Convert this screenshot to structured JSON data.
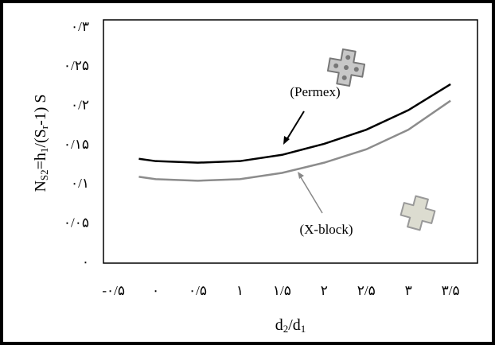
{
  "chart_data": {
    "type": "line",
    "y_label": [
      {
        "text": "N"
      },
      {
        "text": "S2",
        "sub": true
      },
      {
        "text": "=h"
      },
      {
        "text": "1",
        "sub": true
      },
      {
        "text": "/(S"
      },
      {
        "text": "r",
        "sub": true
      },
      {
        "text": "-1) S"
      }
    ],
    "x_label": [
      {
        "text": "d"
      },
      {
        "text": "2",
        "sub": true
      },
      {
        "text": "/d"
      },
      {
        "text": "1",
        "sub": true
      }
    ],
    "xlim": [
      -0.62,
      3.82
    ],
    "ylim": [
      0,
      0.31
    ],
    "xticks": [
      {
        "value": -0.5,
        "label": "-۰/۵"
      },
      {
        "value": 0,
        "label": "۰"
      },
      {
        "value": 0.5,
        "label": "۰/۵"
      },
      {
        "value": 1,
        "label": "۱"
      },
      {
        "value": 1.5,
        "label": "۱/۵"
      },
      {
        "value": 2,
        "label": "۲"
      },
      {
        "value": 2.5,
        "label": "۲/۵"
      },
      {
        "value": 3,
        "label": "۳"
      },
      {
        "value": 3.5,
        "label": "۳/۵"
      }
    ],
    "yticks": [
      {
        "value": 0,
        "label": "۰"
      },
      {
        "value": 0.05,
        "label": "۰/۰۵"
      },
      {
        "value": 0.1,
        "label": "۰/۱"
      },
      {
        "value": 0.15,
        "label": "۰/۱۵"
      },
      {
        "value": 0.2,
        "label": "۰/۲"
      },
      {
        "value": 0.25,
        "label": "۰/۲۵"
      },
      {
        "value": 0.3,
        "label": "۰/۳"
      }
    ],
    "series": [
      {
        "name": "(Permex)",
        "color": "#000000",
        "x": [
          -0.2,
          0,
          0.5,
          1,
          1.5,
          2,
          2.5,
          3,
          3.5
        ],
        "values": [
          0.133,
          0.13,
          0.128,
          0.13,
          0.138,
          0.152,
          0.17,
          0.195,
          0.228
        ]
      },
      {
        "name": "(X-block)",
        "color": "#8c8c8c",
        "x": [
          -0.2,
          0,
          0.5,
          1,
          1.5,
          2,
          2.5,
          3,
          3.5
        ],
        "values": [
          0.11,
          0.107,
          0.105,
          0.107,
          0.115,
          0.128,
          0.145,
          0.17,
          0.207
        ]
      }
    ]
  }
}
